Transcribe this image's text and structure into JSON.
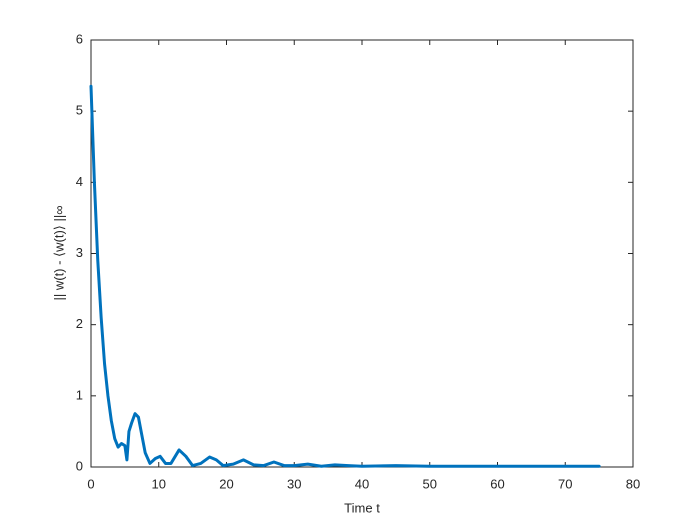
{
  "chart_data": {
    "type": "line",
    "xlabel": "Time t",
    "ylabel": "|| w(t) - ⟨w(t)⟩ ||∞",
    "x": [
      0,
      0.5,
      1,
      1.5,
      2,
      2.5,
      3,
      3.5,
      4,
      4.5,
      5,
      5.3,
      5.6,
      6,
      6.5,
      7,
      7.5,
      8,
      8.7,
      9.5,
      10.2,
      11,
      11.8,
      13,
      14,
      15,
      16.2,
      17.5,
      18.5,
      19.5,
      21,
      22.5,
      24,
      25.5,
      27,
      28.5,
      30,
      32,
      34,
      36,
      38,
      40,
      45,
      50,
      55,
      60,
      65,
      70,
      75
    ],
    "values": [
      5.35,
      4.0,
      2.9,
      2.1,
      1.45,
      1.0,
      0.65,
      0.4,
      0.28,
      0.33,
      0.3,
      0.1,
      0.5,
      0.62,
      0.75,
      0.7,
      0.45,
      0.2,
      0.05,
      0.12,
      0.15,
      0.05,
      0.05,
      0.24,
      0.15,
      0.02,
      0.05,
      0.14,
      0.1,
      0.02,
      0.04,
      0.1,
      0.03,
      0.02,
      0.07,
      0.02,
      0.02,
      0.04,
      0.01,
      0.03,
      0.02,
      0.01,
      0.02,
      0.01,
      0.01,
      0.01,
      0.01,
      0.01,
      0.01
    ],
    "color": "#0072bd",
    "xlim": [
      0,
      80
    ],
    "xticks": [
      0,
      10,
      20,
      30,
      40,
      50,
      60,
      70,
      80
    ],
    "ylim": [
      0,
      6
    ],
    "yticks": [
      0,
      1,
      2,
      3,
      4,
      5,
      6
    ]
  }
}
